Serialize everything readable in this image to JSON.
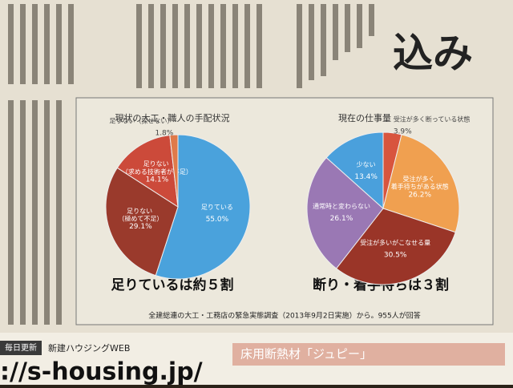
{
  "chart_data": [
    {
      "type": "pie",
      "title": "現状の大工・職人の手配状況",
      "categories": [
        "足りている",
        "足りない\n（極めて不足）",
        "足りない\n（求める技術者が不足）",
        "足りない（探せない）"
      ],
      "values": [
        55.0,
        29.1,
        14.1,
        1.8
      ],
      "value_labels": [
        "55.0%",
        "29.1%",
        "14.1%",
        "1.8%"
      ],
      "colors": [
        "#4aa2dc",
        "#9a3a2c",
        "#cc4a3a",
        "#e07a4a"
      ],
      "annotation": "足りているは約５割"
    },
    {
      "type": "pie",
      "title": "現在の仕事量",
      "categories": [
        "受注が多く断っている状態",
        "受注が多く\n着手待ちがある状態",
        "受注が多いがこなせる量",
        "通常時と変わらない",
        "少ない"
      ],
      "values": [
        3.9,
        26.2,
        30.5,
        26.1,
        13.4
      ],
      "value_labels": [
        "3.9%",
        "26.2%",
        "30.5%",
        "26.1%",
        "13.4%"
      ],
      "colors": [
        "#d8553e",
        "#f0a050",
        "#9a3528",
        "#9a78b4",
        "#4aa0dc"
      ],
      "annotation": "断り・着手待ちは３割"
    }
  ],
  "figure_note": "全建総連の大工・工務店の緊急実態調査（2013年9月2日実施）から。955人が回答",
  "headline": "込み",
  "footer": {
    "update": "毎日更新",
    "site": "新建ハウジングWEB",
    "url": "://s-housing.jp/",
    "ad": "床用断熱材「ジュピー」"
  }
}
